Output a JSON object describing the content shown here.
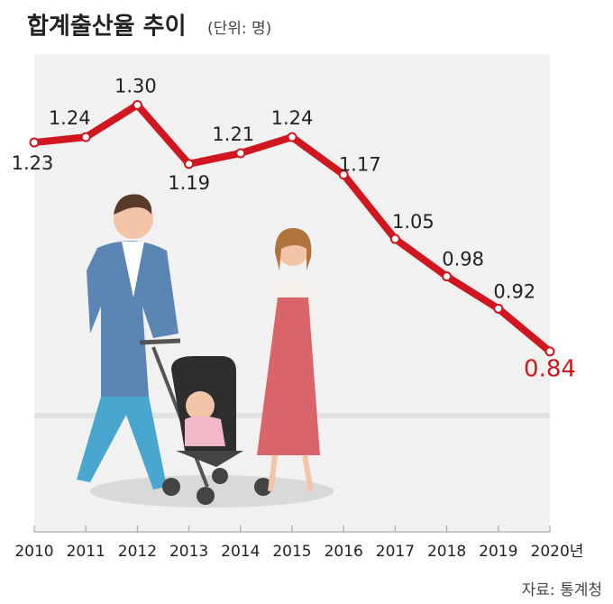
{
  "chart_data": {
    "type": "line",
    "title": "합계출산율 추이",
    "subtitle": "(단위: 명)",
    "source": "자료: 통계청",
    "categories": [
      "2010",
      "2011",
      "2012",
      "2013",
      "2014",
      "2015",
      "2016",
      "2017",
      "2018",
      "2019",
      "2020년"
    ],
    "values": [
      1.23,
      1.24,
      1.3,
      1.19,
      1.21,
      1.24,
      1.17,
      1.05,
      0.98,
      0.92,
      0.84
    ],
    "value_labels": [
      "1.23",
      "1.24",
      "1.30",
      "1.19",
      "1.21",
      "1.24",
      "1.17",
      "1.05",
      "0.98",
      "0.92",
      "0.84"
    ],
    "color": "#d0161f",
    "ylim": [
      0.5,
      1.4
    ]
  }
}
